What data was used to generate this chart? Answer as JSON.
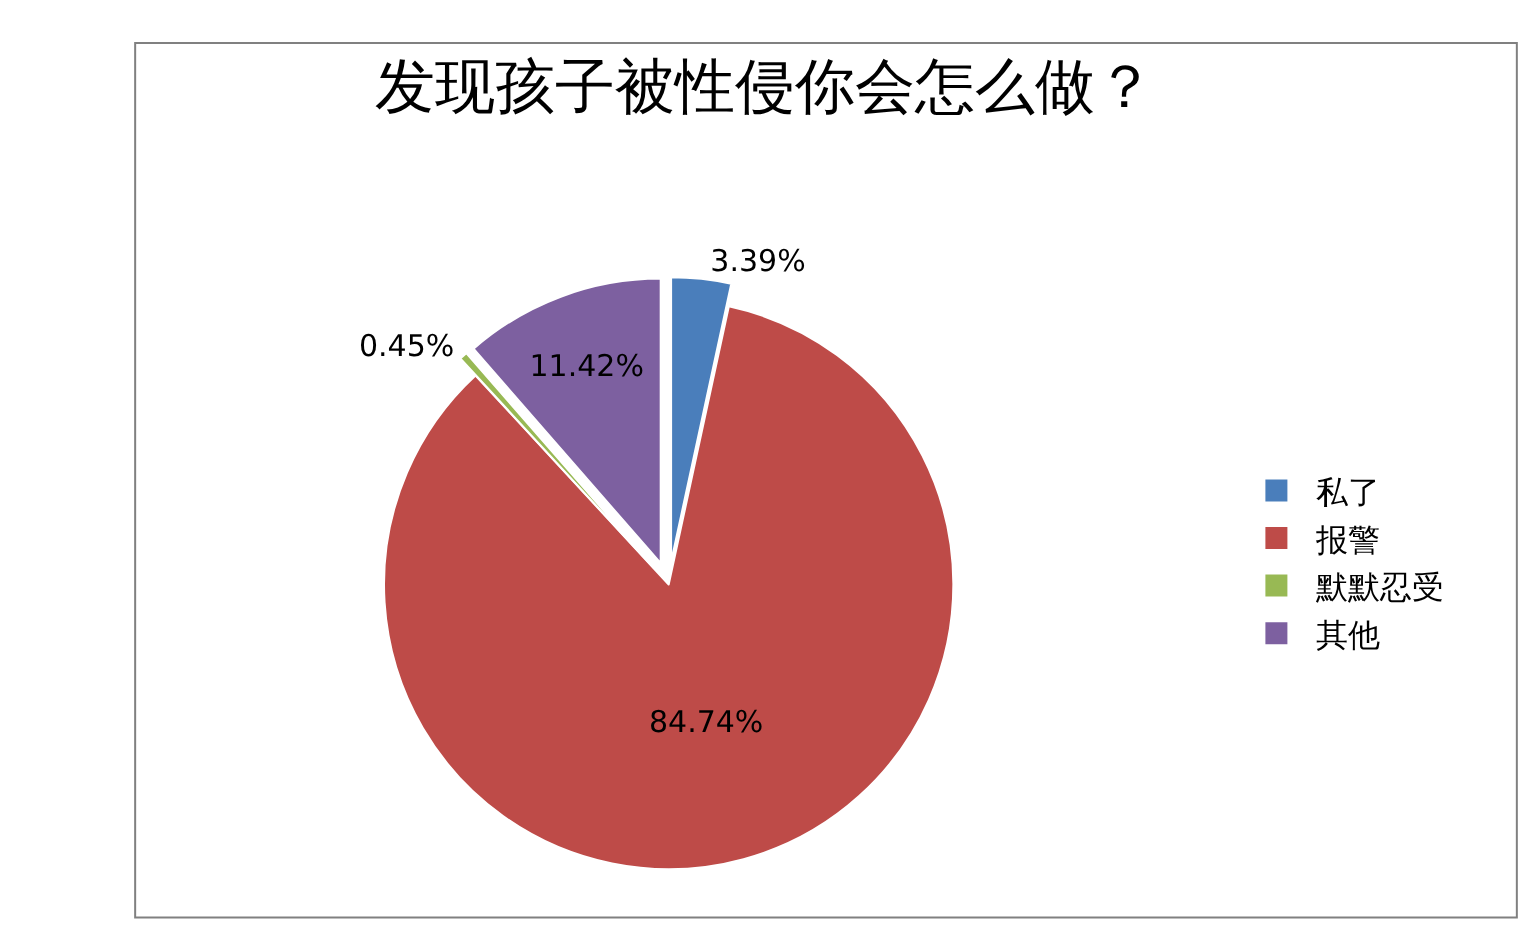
{
  "chart_data": {
    "type": "pie",
    "title": "发现孩子被性侵你会怎么做？",
    "categories": [
      "私了",
      "报警",
      "默默忍受",
      "其他"
    ],
    "values": [
      3.39,
      84.74,
      0.45,
      11.42
    ],
    "colors": [
      "#4a7ebb",
      "#be4b48",
      "#98b954",
      "#7d60a0"
    ],
    "value_labels": [
      "3.39%",
      "84.74%",
      "0.45%",
      "11.42%"
    ],
    "legend": "right"
  }
}
